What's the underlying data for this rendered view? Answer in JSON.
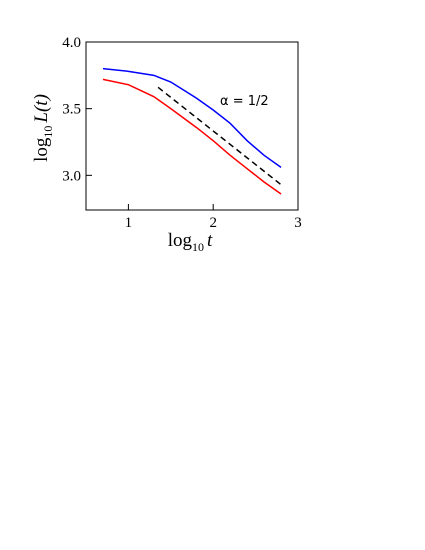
{
  "chart_data": {
    "type": "line",
    "x_label": {
      "base": "log",
      "subscript": "10",
      "body": "t"
    },
    "y_label": {
      "base": "log",
      "subscript": "10",
      "body": "L(t)"
    },
    "annotation": "α = 1/2",
    "x": [
      0.7,
      1.0,
      1.3,
      1.5,
      1.8,
      2.0,
      2.2,
      2.4,
      2.6,
      2.8
    ],
    "series": [
      {
        "name": "blue",
        "color": "#0000ff",
        "values": [
          3.8,
          3.78,
          3.75,
          3.7,
          3.58,
          3.49,
          3.39,
          3.26,
          3.15,
          3.06
        ]
      },
      {
        "name": "red",
        "color": "#ff0000",
        "values": [
          3.72,
          3.68,
          3.59,
          3.5,
          3.36,
          3.26,
          3.15,
          3.05,
          2.95,
          2.86
        ]
      }
    ],
    "guide": {
      "x": [
        1.35,
        2.8
      ],
      "values": [
        3.66,
        2.93
      ],
      "color": "#000000"
    },
    "xlim": [
      0.5,
      3
    ],
    "ylim": [
      2.74,
      4.0
    ],
    "xticks": [
      1,
      2,
      3
    ],
    "yticks": [
      {
        "value": 3,
        "label": "3.0"
      },
      3.5,
      {
        "value": 4,
        "label": "4.0"
      }
    ]
  }
}
